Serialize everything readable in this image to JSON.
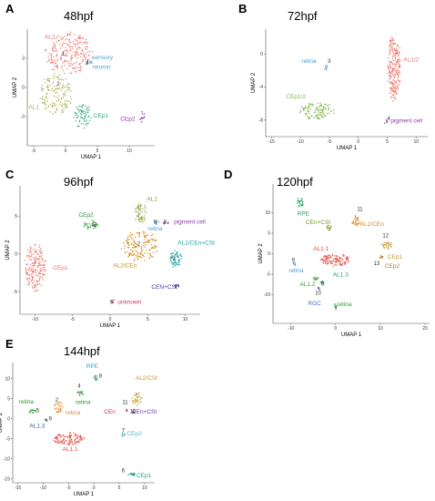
{
  "panels": [
    {
      "letter": "A",
      "title": "48hpf",
      "xlabel": "UMAP 1",
      "ylabel": "UMAP 2",
      "xticks": [
        -5,
        0,
        5,
        10
      ],
      "yticks": [
        3,
        0,
        -3
      ],
      "xlim": [
        -6,
        14
      ],
      "ylim": [
        -6,
        6
      ],
      "clusters": [
        {
          "name": "AL2",
          "color": "#e8726a",
          "cx": 0.5,
          "cy": 3.5,
          "rx": 3.5,
          "ry": 2.2,
          "n": 230,
          "num": "1"
        },
        {
          "name": "sensory neuron",
          "color": "#4a9fd6",
          "cx": 3.7,
          "cy": 2.6,
          "rx": 0.5,
          "ry": 0.3,
          "n": 12,
          "num": "4"
        },
        {
          "name": "AL1",
          "color": "#a8b04a",
          "cx": -1.5,
          "cy": -0.7,
          "rx": 2.5,
          "ry": 2.0,
          "n": 150,
          "num": "2"
        },
        {
          "name": "CEp1",
          "color": "#2aa77a",
          "cx": 2.7,
          "cy": -3.0,
          "rx": 1.4,
          "ry": 1.2,
          "n": 70,
          "num": ""
        },
        {
          "name": "CEp2",
          "color": "#8a3aa6",
          "cx": 12.0,
          "cy": -3.0,
          "rx": 0.4,
          "ry": 0.6,
          "n": 12,
          "num": ""
        }
      ],
      "labels": [
        {
          "text": "AL2",
          "color": "#e8726a",
          "x": -3.3,
          "y": 5.0
        },
        {
          "text": "sensory",
          "color": "#4a9fd6",
          "x": 4.2,
          "y": 2.9
        },
        {
          "text": "neuron",
          "color": "#4a9fd6",
          "x": 4.2,
          "y": 1.9
        },
        {
          "text": "AL1",
          "color": "#a8b04a",
          "x": -5.8,
          "y": -2.2
        },
        {
          "text": "CEp1",
          "color": "#2aa77a",
          "x": 4.4,
          "y": -3.1
        },
        {
          "text": "CEp2",
          "color": "#8a3aa6",
          "x": 8.6,
          "y": -3.4
        }
      ],
      "numbers": [
        {
          "text": "1",
          "x": -0.6,
          "y": 3.3
        },
        {
          "text": "4",
          "x": 3.2,
          "y": 2.4
        },
        {
          "text": "2",
          "x": -1.4,
          "y": 0.2
        }
      ]
    },
    {
      "letter": "B",
      "title": "72hpf",
      "xlabel": "UMAP 1",
      "ylabel": "UMAP 2",
      "xticks": [
        -15,
        -10,
        -5,
        0,
        5,
        10
      ],
      "yticks": [
        0,
        -4,
        -8
      ],
      "xlim": [
        -16,
        12
      ],
      "ylim": [
        -10,
        3
      ],
      "clusters": [
        {
          "name": "AL1/2",
          "color": "#e8726a",
          "cx": 6.2,
          "cy": -1.5,
          "rx": 1.1,
          "ry": 4.0,
          "n": 220,
          "num": ""
        },
        {
          "name": "retina",
          "color": "#4a9fd6",
          "cx": -5.6,
          "cy": -1.6,
          "rx": 0.3,
          "ry": 0.3,
          "n": 8,
          "num": "3"
        },
        {
          "name": "CEp1/2",
          "color": "#7ab84a",
          "cx": -7.0,
          "cy": -6.9,
          "rx": 3.0,
          "ry": 1.0,
          "n": 110,
          "num": ""
        },
        {
          "name": "pigment cell",
          "color": "#8a3aa6",
          "cx": 4.8,
          "cy": -8.2,
          "rx": 0.3,
          "ry": 0.3,
          "n": 6,
          "num": ""
        }
      ],
      "labels": [
        {
          "text": "AL1/2",
          "color": "#e8726a",
          "x": 7.8,
          "y": -0.9
        },
        {
          "text": "retina",
          "color": "#4a9fd6",
          "x": -9.8,
          "y": -1.1
        },
        {
          "text": "CEp1/2",
          "color": "#7ab84a",
          "x": -12.5,
          "y": -5.4
        },
        {
          "text": "pigment cell",
          "color": "#8a3aa6",
          "x": 5.6,
          "y": -8.3
        }
      ],
      "numbers": [
        {
          "text": "3",
          "x": -5.3,
          "y": -1.1
        },
        {
          "text": "4",
          "x": 5.0,
          "y": -8.0
        }
      ]
    },
    {
      "letter": "C",
      "title": "96hpf",
      "xlabel": "UMAP 1",
      "ylabel": "UMAP 2",
      "xticks": [
        -10,
        -5,
        0,
        5,
        10
      ],
      "yticks": [
        5,
        0,
        -5
      ],
      "xlim": [
        -12,
        12
      ],
      "ylim": [
        -8,
        9
      ],
      "clusters": [
        {
          "name": "CEp1",
          "color": "#e8726a",
          "cx": -10.0,
          "cy": -1.8,
          "rx": 1.4,
          "ry": 3.0,
          "n": 180,
          "num": ""
        },
        {
          "name": "CEp2",
          "color": "#2a9a3a",
          "cx": -2.5,
          "cy": 3.8,
          "rx": 1.0,
          "ry": 0.6,
          "n": 35,
          "num": ""
        },
        {
          "name": "AL1",
          "color": "#8aa030",
          "cx": 4.1,
          "cy": 5.4,
          "rx": 0.9,
          "ry": 1.3,
          "n": 55,
          "num": ""
        },
        {
          "name": "retina",
          "color": "#4a9fd6",
          "cx": 6.3,
          "cy": 4.1,
          "rx": 0.3,
          "ry": 0.3,
          "n": 8,
          "num": ""
        },
        {
          "name": "pigment cell",
          "color": "#8a3aa6",
          "cx": 7.5,
          "cy": 4.1,
          "rx": 0.4,
          "ry": 0.2,
          "n": 8,
          "num": ""
        },
        {
          "name": "AL2/CEn",
          "color": "#d08a1a",
          "cx": 4.0,
          "cy": 1.0,
          "rx": 2.4,
          "ry": 2.0,
          "n": 160,
          "num": ""
        },
        {
          "name": "AL1/CEn+CSt",
          "color": "#1aa6a0",
          "cx": 8.8,
          "cy": -0.7,
          "rx": 0.8,
          "ry": 1.1,
          "n": 60,
          "num": ""
        },
        {
          "name": "CEN+CSt",
          "color": "#3a3a9a",
          "cx": 8.9,
          "cy": -4.2,
          "rx": 0.3,
          "ry": 0.3,
          "n": 8,
          "num": ""
        },
        {
          "name": "unknown",
          "color": "#c8306a",
          "cx": 0.4,
          "cy": -6.3,
          "rx": 0.3,
          "ry": 0.3,
          "n": 6,
          "num": ""
        }
      ],
      "labels": [
        {
          "text": "CEp1",
          "color": "#e8726a",
          "x": -7.6,
          "y": -2.1
        },
        {
          "text": "CEp2",
          "color": "#2a9a3a",
          "x": -4.2,
          "y": 4.9
        },
        {
          "text": "AL1",
          "color": "#8aa030",
          "x": 4.9,
          "y": 7.0
        },
        {
          "text": "pigment cell",
          "color": "#8a3aa6",
          "x": 8.5,
          "y": 4.0
        },
        {
          "text": "retina",
          "color": "#4a9fd6",
          "x": 5.0,
          "y": 3.1
        },
        {
          "text": "AL2/CEn",
          "color": "#d08a1a",
          "x": 0.4,
          "y": -1.8
        },
        {
          "text": "AL1/CEn+CSt",
          "color": "#1aa6a0",
          "x": 9.0,
          "y": 1.2
        },
        {
          "text": "CEN+CSt",
          "color": "#3a3a9a",
          "x": 5.5,
          "y": -4.6
        },
        {
          "text": "unknown",
          "color": "#c8306a",
          "x": 1.0,
          "y": -6.6
        }
      ],
      "numbers": [
        {
          "text": "5",
          "x": -2.3,
          "y": 3.6
        },
        {
          "text": "6",
          "x": 5.8,
          "y": 4.0
        },
        {
          "text": "8",
          "x": 7.1,
          "y": 4.0
        },
        {
          "text": "2",
          "x": 3.6,
          "y": 1.1
        },
        {
          "text": "3",
          "x": 8.3,
          "y": -0.9
        },
        {
          "text": "7",
          "x": 8.6,
          "y": -4.6
        },
        {
          "text": "9",
          "x": 0.0,
          "y": -6.6
        }
      ]
    },
    {
      "letter": "D",
      "title": "120hpf",
      "xlabel": "UMAP 1",
      "ylabel": "UMAP 2",
      "xticks": [
        -10,
        0,
        10,
        20
      ],
      "yticks": [
        10,
        5,
        0,
        -5,
        -10
      ],
      "xlim": [
        -14,
        21
      ],
      "ylim": [
        -17,
        17
      ],
      "clusters": [
        {
          "name": "RPE",
          "color": "#2aa060",
          "cx": -8.0,
          "cy": 12.5,
          "rx": 0.8,
          "ry": 1.2,
          "n": 25,
          "num": ""
        },
        {
          "name": "CEn+CSt",
          "color": "#7a9a20",
          "cx": -1.5,
          "cy": 6.4,
          "rx": 0.5,
          "ry": 0.7,
          "n": 15,
          "num": ""
        },
        {
          "name": "AL2/CEn",
          "color": "#e08a2a",
          "cx": 4.6,
          "cy": 8.0,
          "rx": 1.0,
          "ry": 1.3,
          "n": 35,
          "num": ""
        },
        {
          "name": "AL1.1",
          "color": "#e04a40",
          "cx": 0.0,
          "cy": -1.5,
          "rx": 3.5,
          "ry": 1.5,
          "n": 110,
          "num": ""
        },
        {
          "name": "CEp1",
          "color": "#c89a30",
          "cx": 11.5,
          "cy": 2.0,
          "rx": 1.2,
          "ry": 0.9,
          "n": 30,
          "num": ""
        },
        {
          "name": "CEp2",
          "color": "#b08030",
          "cx": 10.3,
          "cy": -0.8,
          "rx": 0.4,
          "ry": 0.4,
          "n": 8,
          "num": ""
        },
        {
          "name": "retina",
          "color": "#4a9fd6",
          "cx": -9.2,
          "cy": -2.5,
          "rx": 0.3,
          "ry": 0.4,
          "n": 8,
          "num": ""
        },
        {
          "name": "AL1.2",
          "color": "#3a9a3a",
          "cx": -4.5,
          "cy": -6.0,
          "rx": 0.7,
          "ry": 0.4,
          "n": 15,
          "num": ""
        },
        {
          "name": "AL1.3",
          "color": "#3a9a6a",
          "cx": -3.0,
          "cy": -7.0,
          "rx": 0.4,
          "ry": 0.4,
          "n": 10,
          "num": ""
        },
        {
          "name": "RGC",
          "color": "#4a6ab6",
          "cx": -3.8,
          "cy": -8.5,
          "rx": 0.3,
          "ry": 0.3,
          "n": 6,
          "num": ""
        },
        {
          "name": "retina",
          "color": "#3a9a3a",
          "cx": 0.0,
          "cy": -13.0,
          "rx": 0.3,
          "ry": 0.8,
          "n": 12,
          "num": ""
        }
      ],
      "labels": [
        {
          "text": "RPE",
          "color": "#2aa060",
          "x": -8.6,
          "y": 9.3
        },
        {
          "text": "CEn+CSt",
          "color": "#7a9a20",
          "x": -6.7,
          "y": 7.2
        },
        {
          "text": "AL2/CEn",
          "color": "#e08a2a",
          "x": 5.5,
          "y": 6.8
        },
        {
          "text": "AL1.1",
          "color": "#e04a40",
          "x": -5.0,
          "y": 0.8
        },
        {
          "text": "CEp1",
          "color": "#c89a30",
          "x": 11.6,
          "y": -1.2
        },
        {
          "text": "CEp2",
          "color": "#b08030",
          "x": 11.0,
          "y": -3.4
        },
        {
          "text": "retina",
          "color": "#4a9fd6",
          "x": -10.5,
          "y": -4.6
        },
        {
          "text": "AL1.2",
          "color": "#3a9a3a",
          "x": -8.0,
          "y": -7.9
        },
        {
          "text": "AL1.3",
          "color": "#3a9a6a",
          "x": -0.6,
          "y": -5.6
        },
        {
          "text": "RGC",
          "color": "#4a6ab6",
          "x": -6.2,
          "y": -12.6
        },
        {
          "text": "retina",
          "color": "#3a9a3a",
          "x": 0.3,
          "y": -12.8
        }
      ],
      "numbers": [
        {
          "text": "11",
          "x": 4.8,
          "y": 10.4
        },
        {
          "text": "12",
          "x": 10.5,
          "y": 4.0
        },
        {
          "text": "13",
          "x": 8.5,
          "y": -2.8
        },
        {
          "text": "9",
          "x": -9.8,
          "y": -2.0
        },
        {
          "text": "8",
          "x": -3.2,
          "y": -7.8
        },
        {
          "text": "10",
          "x": -4.6,
          "y": -10.0
        }
      ]
    },
    {
      "letter": "E",
      "title": "144hpf",
      "xlabel": "UMAP 1",
      "ylabel": "UMAP 2",
      "xticks": [
        -15,
        -10,
        -5,
        0,
        5,
        10
      ],
      "yticks": [
        10,
        5,
        0,
        -5,
        -10,
        -15
      ],
      "xlim": [
        -16,
        12
      ],
      "ylim": [
        -16,
        14
      ],
      "clusters": [
        {
          "name": "RPE",
          "color": "#2aa060",
          "cx": 0.4,
          "cy": 10.3,
          "rx": 0.4,
          "ry": 0.8,
          "n": 12,
          "num": ""
        },
        {
          "name": "retina",
          "color": "#2a9a2a",
          "cx": -2.7,
          "cy": 6.3,
          "rx": 0.8,
          "ry": 0.5,
          "n": 15,
          "num": ""
        },
        {
          "name": "retina",
          "color": "#e08a2a",
          "cx": -7.0,
          "cy": 2.8,
          "rx": 0.8,
          "ry": 1.4,
          "n": 30,
          "num": ""
        },
        {
          "name": "retina",
          "color": "#2a9a2a",
          "cx": -12.2,
          "cy": 1.8,
          "rx": 0.8,
          "ry": 0.5,
          "n": 15,
          "num": ""
        },
        {
          "name": "AL1.3",
          "color": "#3a5a9a",
          "cx": -9.5,
          "cy": -0.5,
          "rx": 0.3,
          "ry": 0.4,
          "n": 6,
          "num": ""
        },
        {
          "name": "AL1.1",
          "color": "#e04a40",
          "cx": -5.0,
          "cy": -5.0,
          "rx": 3.0,
          "ry": 1.5,
          "n": 110,
          "num": ""
        },
        {
          "name": "AL2/CSt",
          "color": "#c89a30",
          "cx": 8.5,
          "cy": 5.0,
          "rx": 1.0,
          "ry": 1.8,
          "n": 35,
          "num": ""
        },
        {
          "name": "CEn",
          "color": "#c8306a",
          "cx": 6.5,
          "cy": 2.0,
          "rx": 0.3,
          "ry": 0.3,
          "n": 6,
          "num": ""
        },
        {
          "name": "CEn+CSt",
          "color": "#6a3aa6",
          "cx": 7.8,
          "cy": 1.6,
          "rx": 0.3,
          "ry": 0.3,
          "n": 6,
          "num": ""
        },
        {
          "name": "CEp2",
          "color": "#4ab8d6",
          "cx": 5.8,
          "cy": -4.0,
          "rx": 0.4,
          "ry": 0.6,
          "n": 10,
          "num": ""
        },
        {
          "name": "CEp1",
          "color": "#1aa080",
          "cx": 7.5,
          "cy": -14.0,
          "rx": 0.7,
          "ry": 0.4,
          "n": 15,
          "num": ""
        }
      ],
      "labels": [
        {
          "text": "RPE",
          "color": "#2aa7c8",
          "x": -1.5,
          "y": 12.6
        },
        {
          "text": "AL2/CSt",
          "color": "#c89a30",
          "x": 8.2,
          "y": 9.7
        },
        {
          "text": "retina",
          "color": "#2a9a2a",
          "x": -3.6,
          "y": 3.7
        },
        {
          "text": "retina",
          "color": "#2a9a2a",
          "x": -14.8,
          "y": 3.8
        },
        {
          "text": "retina",
          "color": "#e08a2a",
          "x": -5.6,
          "y": 1.0
        },
        {
          "text": "CEn",
          "color": "#c8306a",
          "x": 2.0,
          "y": 1.3
        },
        {
          "text": "CEn+CSt",
          "color": "#6a3aa6",
          "x": 7.5,
          "y": 1.3
        },
        {
          "text": "AL1.3",
          "color": "#3a5a9a",
          "x": -12.7,
          "y": -2.2
        },
        {
          "text": "CEp2",
          "color": "#4ab8d6",
          "x": 6.5,
          "y": -4.2
        },
        {
          "text": "AL1.1",
          "color": "#e04a40",
          "x": -6.2,
          "y": -8.0
        },
        {
          "text": "CEp1",
          "color": "#1aa080",
          "x": 8.4,
          "y": -14.6
        }
      ],
      "numbers": [
        {
          "text": "8",
          "x": 1.0,
          "y": 10.3
        },
        {
          "text": "4",
          "x": -3.2,
          "y": 7.8
        },
        {
          "text": "5",
          "x": -11.4,
          "y": 1.6
        },
        {
          "text": "2",
          "x": -7.6,
          "y": 4.2
        },
        {
          "text": "9",
          "x": -8.9,
          "y": -0.4
        },
        {
          "text": "11",
          "x": 5.6,
          "y": 3.7
        },
        {
          "text": "10",
          "x": 7.1,
          "y": 1.4
        },
        {
          "text": "7",
          "x": 5.5,
          "y": -3.4
        },
        {
          "text": "6",
          "x": 5.5,
          "y": -13.4
        }
      ]
    }
  ]
}
